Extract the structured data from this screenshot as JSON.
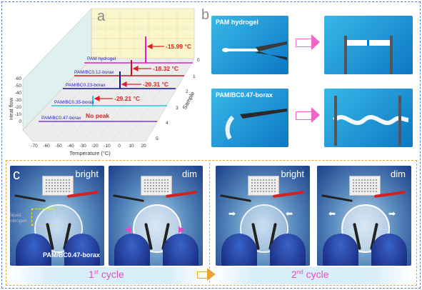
{
  "panel_a": {
    "letter": "a",
    "y_axis_label": "Heat flow",
    "x_axis_label": "Temperature (°C)",
    "z_axis_label": "Sample",
    "y_ticks": [
      "-60",
      "-50",
      "-40",
      "-30",
      "-20",
      "-10",
      "0"
    ],
    "x_ticks": [
      "-70",
      "-60",
      "-50",
      "-40",
      "-30",
      "-20",
      "-10",
      "0",
      "10",
      "20"
    ],
    "z_ticks": [
      "0",
      "1",
      "2",
      "3",
      "4",
      "5"
    ],
    "samples": [
      {
        "name": "PAM hydrogel",
        "peak": "-15.99 °C",
        "color": "#e021c8"
      },
      {
        "name": "PAM/BC0.12-borax",
        "peak": "-18.32 °C",
        "color": "#cc1020"
      },
      {
        "name": "PAM/BC0.23-borax",
        "peak": "-20.31 °C",
        "color": "#1010a0"
      },
      {
        "name": "PAM/BC0.35-borax",
        "peak": "-29.21 °C",
        "color": "#22c8d8"
      },
      {
        "name": "PAM/BC0.47-borax",
        "peak": "No peak",
        "color": "#7a3ad0"
      }
    ]
  },
  "panel_b": {
    "letter": "b",
    "top_label": "PAM hydrogel",
    "bottom_label": "PAM/BC0.47-borax"
  },
  "panel_c": {
    "letter": "c",
    "states": [
      "bright",
      "dim",
      "bright",
      "dim"
    ],
    "annotation_liquid": "liquid",
    "annotation_nitrogen": "nitrogen",
    "sample_label": "PAM/BC0.47-borax",
    "cycle1": "1",
    "cycle1_sup": "st",
    "cycle2": "2",
    "cycle2_sup": "nd",
    "cycle_word": " cycle"
  }
}
